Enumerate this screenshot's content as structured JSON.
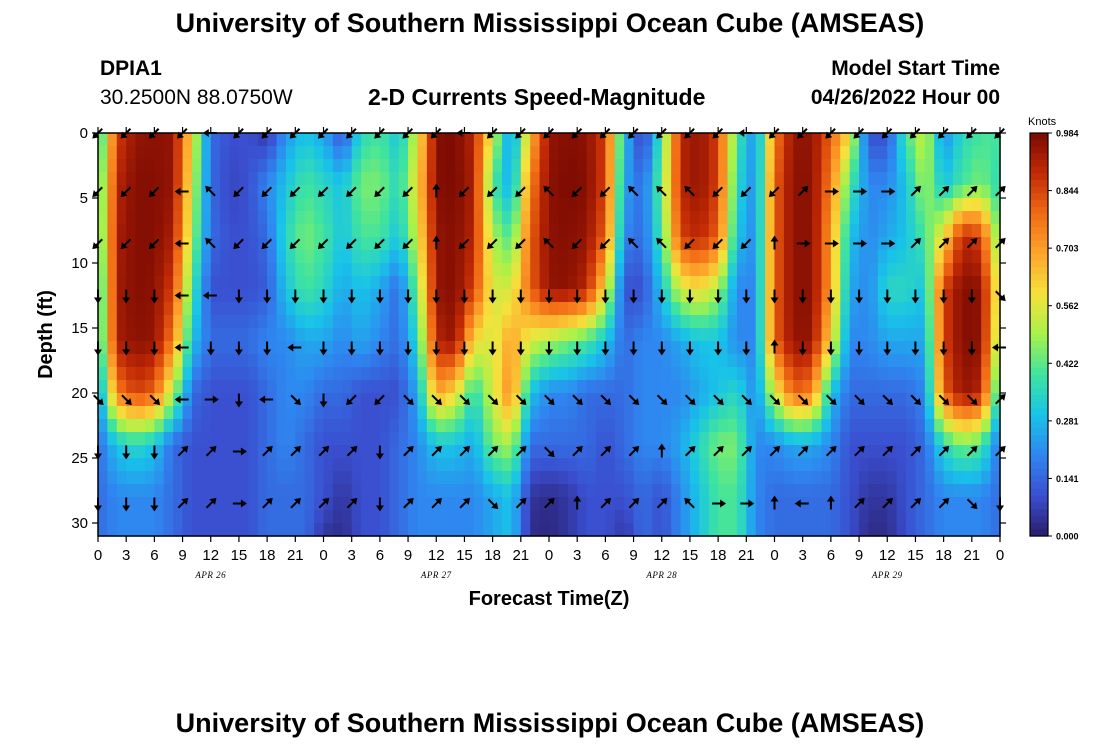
{
  "header": {
    "title": "University of Southern Mississippi Ocean Cube (AMSEAS)",
    "station_id": "DPIA1",
    "station_coords": "30.2500N  88.0750W",
    "subtitle": "2-D Currents Speed-Magnitude",
    "model_start_label": "Model Start Time",
    "model_start_value": "04/26/2022 Hour 00"
  },
  "footer": {
    "title": "University of Southern Mississippi Ocean Cube (AMSEAS)"
  },
  "colors": {
    "frame": "#000000",
    "arrow": "#000000",
    "colormap": [
      "#2a1d6b",
      "#3a4fd0",
      "#2f86f0",
      "#18c3e8",
      "#3fe3a0",
      "#a6f24a",
      "#f5e23c",
      "#fda52c",
      "#f06a14",
      "#c22a05",
      "#7a0a02"
    ]
  },
  "chart_data": {
    "type": "heatmap",
    "title": "2-D Currents Speed-Magnitude",
    "xlabel": "Forecast Time(Z)",
    "ylabel": "Depth (ft)",
    "x_range_hours": [
      0,
      96
    ],
    "y_range_ft": [
      0,
      31
    ],
    "y_reversed": true,
    "x_ticks": [
      {
        "h": 0,
        "label": "0"
      },
      {
        "h": 3,
        "label": "3"
      },
      {
        "h": 6,
        "label": "6"
      },
      {
        "h": 9,
        "label": "9"
      },
      {
        "h": 12,
        "label": "12"
      },
      {
        "h": 15,
        "label": "15"
      },
      {
        "h": 18,
        "label": "18"
      },
      {
        "h": 21,
        "label": "21"
      },
      {
        "h": 24,
        "label": "0"
      },
      {
        "h": 27,
        "label": "3"
      },
      {
        "h": 30,
        "label": "6"
      },
      {
        "h": 33,
        "label": "9"
      },
      {
        "h": 36,
        "label": "12"
      },
      {
        "h": 39,
        "label": "15"
      },
      {
        "h": 42,
        "label": "18"
      },
      {
        "h": 45,
        "label": "21"
      },
      {
        "h": 48,
        "label": "0"
      },
      {
        "h": 51,
        "label": "3"
      },
      {
        "h": 54,
        "label": "6"
      },
      {
        "h": 57,
        "label": "9"
      },
      {
        "h": 60,
        "label": "12"
      },
      {
        "h": 63,
        "label": "15"
      },
      {
        "h": 66,
        "label": "18"
      },
      {
        "h": 69,
        "label": "21"
      },
      {
        "h": 72,
        "label": "0"
      },
      {
        "h": 75,
        "label": "3"
      },
      {
        "h": 78,
        "label": "6"
      },
      {
        "h": 81,
        "label": "9"
      },
      {
        "h": 84,
        "label": "12"
      },
      {
        "h": 87,
        "label": "15"
      },
      {
        "h": 90,
        "label": "18"
      },
      {
        "h": 93,
        "label": "21"
      },
      {
        "h": 96,
        "label": "0"
      }
    ],
    "y_ticks": [
      0,
      5,
      10,
      15,
      20,
      25,
      30
    ],
    "date_labels": [
      {
        "h": 12,
        "label": "APR 26"
      },
      {
        "h": 36,
        "label": "APR 27"
      },
      {
        "h": 60,
        "label": "APR 28"
      },
      {
        "h": 84,
        "label": "APR 29"
      }
    ],
    "colorbar": {
      "unit": "Knots",
      "min": 0.0,
      "max": 0.984,
      "ticks": [
        "0.984",
        "0.844",
        "0.703",
        "0.562",
        "0.422",
        "0.281",
        "0.141",
        "0.000"
      ]
    },
    "arrow_depths_ft": [
      0,
      4.5,
      8.5,
      12.5,
      16.5,
      20.5,
      24.5,
      28.5
    ],
    "arrow_hours": [
      0,
      3,
      6,
      9,
      12,
      15,
      18,
      21,
      24,
      27,
      30,
      33,
      36,
      39,
      42,
      45,
      48,
      51,
      54,
      57,
      60,
      63,
      66,
      69,
      72,
      75,
      78,
      81,
      84,
      87,
      90,
      93,
      96
    ],
    "speed_cells": {
      "note": "speed magnitude in knots; columns every 2 hours (0-96), rows at depths 0,4,8,12,16,20,24,28,31 ft",
      "depths_ft": [
        0,
        4,
        8,
        12,
        16,
        20,
        24,
        28,
        31
      ],
      "hour_step": 2,
      "rows": [
        [
          0.3,
          0.85,
          0.95,
          0.96,
          0.95,
          0.6,
          0.15,
          0.1,
          0.1,
          0.05,
          0.22,
          0.3,
          0.25,
          0.1,
          0.35,
          0.4,
          0.3,
          0.55,
          0.97,
          0.98,
          0.9,
          0.55,
          0.2,
          0.65,
          0.95,
          0.97,
          0.96,
          0.85,
          0.3,
          0.05,
          0.4,
          0.9,
          0.95,
          0.85,
          0.4,
          0.2,
          0.75,
          0.95,
          0.95,
          0.8,
          0.6,
          0.1,
          0.1,
          0.4,
          0.55,
          0.2,
          0.35,
          0.4,
          0.4
        ],
        [
          0.35,
          0.9,
          0.97,
          0.97,
          0.95,
          0.55,
          0.15,
          0.08,
          0.1,
          0.2,
          0.3,
          0.4,
          0.35,
          0.3,
          0.45,
          0.45,
          0.35,
          0.6,
          0.97,
          0.98,
          0.92,
          0.4,
          0.25,
          0.75,
          0.96,
          0.98,
          0.97,
          0.85,
          0.25,
          0.15,
          0.45,
          0.9,
          0.95,
          0.85,
          0.35,
          0.2,
          0.8,
          0.96,
          0.96,
          0.75,
          0.4,
          0.2,
          0.2,
          0.3,
          0.5,
          0.3,
          0.4,
          0.45,
          0.35
        ],
        [
          0.35,
          0.92,
          0.97,
          0.97,
          0.92,
          0.5,
          0.15,
          0.1,
          0.1,
          0.15,
          0.35,
          0.45,
          0.4,
          0.3,
          0.4,
          0.4,
          0.3,
          0.55,
          0.95,
          0.97,
          0.9,
          0.5,
          0.4,
          0.8,
          0.96,
          0.97,
          0.95,
          0.8,
          0.2,
          0.15,
          0.4,
          0.85,
          0.9,
          0.8,
          0.3,
          0.2,
          0.8,
          0.96,
          0.96,
          0.7,
          0.3,
          0.2,
          0.25,
          0.3,
          0.4,
          0.6,
          0.9,
          0.85,
          0.4
        ],
        [
          0.3,
          0.93,
          0.97,
          0.96,
          0.85,
          0.4,
          0.1,
          0.1,
          0.1,
          0.12,
          0.3,
          0.4,
          0.35,
          0.25,
          0.3,
          0.25,
          0.15,
          0.45,
          0.95,
          0.97,
          0.85,
          0.55,
          0.55,
          0.8,
          0.95,
          0.96,
          0.9,
          0.6,
          0.1,
          0.1,
          0.3,
          0.55,
          0.6,
          0.5,
          0.2,
          0.2,
          0.8,
          0.96,
          0.96,
          0.7,
          0.25,
          0.2,
          0.35,
          0.35,
          0.3,
          0.85,
          0.97,
          0.96,
          0.5
        ],
        [
          0.3,
          0.92,
          0.96,
          0.95,
          0.75,
          0.3,
          0.15,
          0.15,
          0.15,
          0.2,
          0.2,
          0.25,
          0.25,
          0.2,
          0.25,
          0.2,
          0.15,
          0.35,
          0.9,
          0.95,
          0.6,
          0.55,
          0.7,
          0.55,
          0.5,
          0.45,
          0.4,
          0.3,
          0.15,
          0.2,
          0.2,
          0.25,
          0.3,
          0.3,
          0.2,
          0.2,
          0.8,
          0.95,
          0.95,
          0.6,
          0.2,
          0.2,
          0.25,
          0.25,
          0.25,
          0.85,
          0.97,
          0.96,
          0.45
        ],
        [
          0.2,
          0.75,
          0.85,
          0.8,
          0.5,
          0.15,
          0.1,
          0.1,
          0.1,
          0.15,
          0.2,
          0.2,
          0.15,
          0.15,
          0.1,
          0.1,
          0.1,
          0.25,
          0.7,
          0.6,
          0.35,
          0.55,
          0.75,
          0.3,
          0.2,
          0.2,
          0.15,
          0.15,
          0.15,
          0.2,
          0.2,
          0.2,
          0.25,
          0.3,
          0.35,
          0.2,
          0.55,
          0.8,
          0.75,
          0.3,
          0.15,
          0.15,
          0.15,
          0.15,
          0.2,
          0.8,
          0.95,
          0.9,
          0.3
        ],
        [
          0.15,
          0.3,
          0.35,
          0.3,
          0.15,
          0.1,
          0.1,
          0.1,
          0.1,
          0.15,
          0.2,
          0.15,
          0.1,
          0.1,
          0.1,
          0.1,
          0.15,
          0.2,
          0.3,
          0.3,
          0.25,
          0.45,
          0.5,
          0.15,
          0.15,
          0.15,
          0.15,
          0.1,
          0.15,
          0.2,
          0.2,
          0.25,
          0.35,
          0.45,
          0.45,
          0.2,
          0.2,
          0.25,
          0.25,
          0.2,
          0.1,
          0.1,
          0.1,
          0.1,
          0.15,
          0.35,
          0.45,
          0.4,
          0.15
        ],
        [
          0.15,
          0.2,
          0.2,
          0.2,
          0.15,
          0.1,
          0.1,
          0.1,
          0.1,
          0.15,
          0.15,
          0.15,
          0.1,
          0.05,
          0.1,
          0.1,
          0.15,
          0.2,
          0.2,
          0.2,
          0.2,
          0.25,
          0.3,
          0.05,
          0.03,
          0.05,
          0.1,
          0.1,
          0.1,
          0.15,
          0.1,
          0.2,
          0.3,
          0.4,
          0.4,
          0.2,
          0.15,
          0.15,
          0.15,
          0.15,
          0.1,
          0.05,
          0.05,
          0.1,
          0.15,
          0.2,
          0.2,
          0.2,
          0.15
        ],
        [
          0.15,
          0.2,
          0.2,
          0.2,
          0.15,
          0.1,
          0.1,
          0.1,
          0.1,
          0.15,
          0.15,
          0.15,
          0.05,
          0.03,
          0.1,
          0.1,
          0.15,
          0.2,
          0.2,
          0.2,
          0.2,
          0.25,
          0.3,
          0.03,
          0.02,
          0.05,
          0.1,
          0.1,
          0.05,
          0.15,
          0.1,
          0.2,
          0.3,
          0.4,
          0.4,
          0.2,
          0.15,
          0.15,
          0.15,
          0.15,
          0.1,
          0.03,
          0.03,
          0.1,
          0.15,
          0.2,
          0.2,
          0.2,
          0.15
        ]
      ]
    },
    "arrow_dirs_deg": {
      "note": "compass direction (deg, 0=up/north, 90=right/east) per arrow row (depth) per 3-hour column",
      "rows": [
        [
          225,
          225,
          225,
          225,
          270,
          225,
          225,
          225,
          225,
          225,
          225,
          225,
          225,
          270,
          225,
          225,
          225,
          225,
          225,
          225,
          225,
          225,
          225,
          270,
          225,
          225,
          225,
          225,
          225,
          225,
          225,
          225,
          225
        ],
        [
          225,
          225,
          225,
          270,
          315,
          225,
          225,
          225,
          225,
          225,
          225,
          225,
          0,
          225,
          225,
          225,
          315,
          225,
          225,
          315,
          315,
          315,
          225,
          225,
          225,
          45,
          90,
          90,
          90,
          45,
          45,
          45,
          45
        ],
        [
          225,
          225,
          225,
          270,
          315,
          225,
          225,
          225,
          225,
          225,
          225,
          225,
          0,
          225,
          225,
          225,
          315,
          225,
          225,
          315,
          315,
          225,
          225,
          225,
          0,
          90,
          90,
          90,
          90,
          45,
          45,
          45,
          45
        ],
        [
          180,
          180,
          180,
          270,
          270,
          180,
          180,
          180,
          180,
          180,
          180,
          180,
          180,
          180,
          180,
          180,
          180,
          180,
          180,
          180,
          180,
          180,
          180,
          180,
          180,
          180,
          180,
          180,
          180,
          180,
          180,
          180,
          135
        ],
        [
          180,
          180,
          180,
          270,
          180,
          180,
          180,
          270,
          180,
          180,
          180,
          180,
          180,
          180,
          180,
          180,
          180,
          180,
          180,
          180,
          180,
          180,
          180,
          180,
          0,
          180,
          180,
          180,
          180,
          180,
          180,
          180,
          270
        ],
        [
          135,
          135,
          135,
          270,
          90,
          180,
          270,
          135,
          180,
          225,
          225,
          135,
          135,
          135,
          135,
          135,
          135,
          135,
          135,
          135,
          135,
          135,
          135,
          135,
          135,
          135,
          135,
          135,
          135,
          135,
          135,
          135,
          45
        ],
        [
          180,
          180,
          180,
          45,
          45,
          90,
          45,
          45,
          45,
          45,
          180,
          45,
          45,
          45,
          45,
          45,
          135,
          45,
          45,
          45,
          0,
          45,
          45,
          45,
          45,
          45,
          45,
          45,
          45,
          45,
          45,
          45,
          45
        ],
        [
          180,
          180,
          180,
          45,
          45,
          90,
          45,
          45,
          45,
          45,
          180,
          45,
          45,
          45,
          135,
          45,
          45,
          0,
          45,
          45,
          45,
          315,
          90,
          90,
          0,
          270,
          0,
          45,
          45,
          45,
          45,
          135,
          180
        ]
      ]
    }
  }
}
